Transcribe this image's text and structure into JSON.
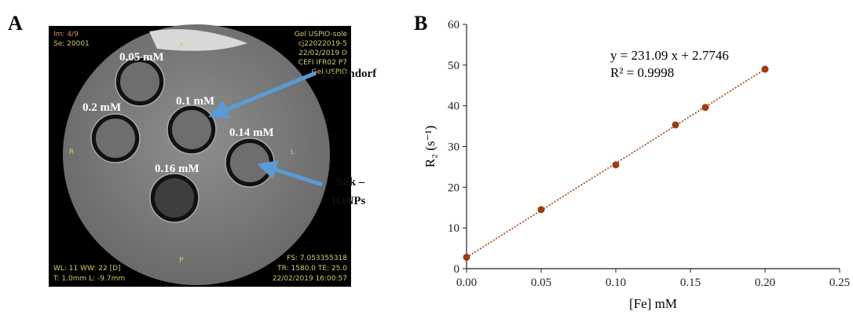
{
  "figure_a": {
    "label": "A",
    "overlay_top_left": [
      "Im: 4/9",
      "Se: 20001"
    ],
    "overlay_top_right": [
      "Gel USPIO-sole",
      "cj22022019-5",
      "22/02/2019 O",
      "CEFI IFR02 P7",
      "Gel USPIO"
    ],
    "overlay_bottom_left": [
      "WL: 11 WW: 22 [D]",
      "T: 1.0mm L: -9.7mm"
    ],
    "overlay_bottom_right": [
      "FS: 7.053355318",
      "TR: 1580.0 TE: 25.0",
      "22/02/2019 16:00:57"
    ],
    "orientation": [
      "A",
      "R",
      "L",
      "P"
    ],
    "tubes": [
      "0.05 mM",
      "0.2 mM",
      "0.1 mM",
      "0.14 mM",
      "0.16 mM"
    ],
    "annotations": [
      "Eppendorf",
      "Silk –",
      "IONPs"
    ]
  },
  "chart_data": {
    "type": "scatter",
    "label": "B",
    "x": [
      0,
      0.05,
      0.1,
      0.14,
      0.16,
      0.2
    ],
    "values": [
      2.8,
      14.5,
      25.5,
      35.3,
      39.6,
      49
    ],
    "color": "#9c3d12",
    "xlabel": "[Fe] mM",
    "ylabel": "R₂ (s⁻¹)",
    "xlim": [
      0,
      0.25
    ],
    "xticks": [
      {
        "value": 0,
        "label": "0.00"
      },
      {
        "value": 0.05,
        "label": "0.05"
      },
      {
        "value": 0.1,
        "label": "0.10"
      },
      {
        "value": 0.15,
        "label": "0.15"
      },
      {
        "value": 0.2,
        "label": "0.20"
      },
      {
        "value": 0.25,
        "label": "0.25"
      }
    ],
    "ylim": [
      0,
      60
    ],
    "yticks": [
      0,
      10,
      20,
      30,
      40,
      50,
      60
    ],
    "trendline": {
      "slope": 231.09,
      "intercept": 2.7746,
      "label": "y = 231.09 x + 2.7746",
      "r2_label": "R² = 0.9998"
    }
  }
}
